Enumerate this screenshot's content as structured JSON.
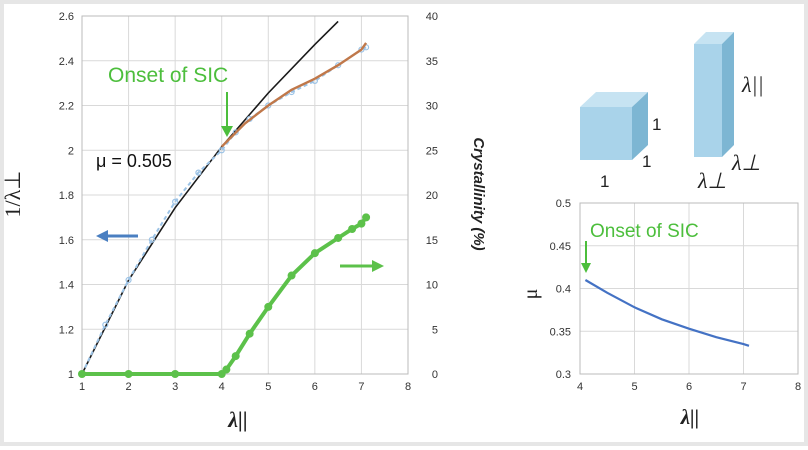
{
  "colors": {
    "measured": "#9cc3e6",
    "fit_power": "#1a1a1a",
    "fit_sic": "#c0784a",
    "crystallinity": "#5cc14a",
    "mu_curve": "#4472c4",
    "onset": "#4cbe3c",
    "cube_face": "#a9d3ea",
    "cube_side": "#6fa8c6"
  },
  "chart_data": [
    {
      "type": "line",
      "xlabel": "λ||",
      "ylabel": "1/λ⊥",
      "y2label": "Crystallinity (%)",
      "xlim": [
        1,
        8
      ],
      "ylim": [
        1,
        2.6
      ],
      "y2lim": [
        0,
        40
      ],
      "x_ticks": [
        "1",
        "2",
        "3",
        "4",
        "5",
        "6",
        "7",
        "8"
      ],
      "y_ticks": [
        "1",
        "1.2",
        "1.4",
        "1.6",
        "1.8",
        "2",
        "2.2",
        "2.4",
        "2.6"
      ],
      "y2_ticks": [
        "0",
        "5",
        "10",
        "15",
        "20",
        "25",
        "30",
        "35",
        "40"
      ],
      "grid": true,
      "annotations": {
        "onset": "Onset of SIC",
        "mu": "μ = 0.505"
      },
      "series": [
        {
          "axis": "left",
          "style": "dashed-markers",
          "x": [
            1,
            1.5,
            2,
            2.5,
            3,
            3.5,
            4,
            4.3,
            4.6,
            5,
            5.5,
            6,
            6.5,
            7,
            7.1
          ],
          "y": [
            1,
            1.22,
            1.42,
            1.6,
            1.77,
            1.9,
            2.0,
            2.08,
            2.14,
            2.2,
            2.26,
            2.31,
            2.38,
            2.45,
            2.46
          ]
        },
        {
          "axis": "left",
          "style": "line",
          "x": [
            1,
            2,
            3,
            4,
            5,
            6,
            6.5
          ],
          "y": [
            1,
            1.419,
            1.743,
            2.016,
            2.256,
            2.473,
            2.576
          ]
        },
        {
          "axis": "left",
          "style": "line",
          "x": [
            4,
            4.5,
            5,
            5.5,
            6,
            6.5,
            7,
            7.1
          ],
          "y": [
            2.016,
            2.12,
            2.2,
            2.27,
            2.32,
            2.38,
            2.45,
            2.48
          ]
        },
        {
          "axis": "right",
          "style": "markers",
          "x": [
            1,
            2,
            3,
            4,
            4.1,
            4.3,
            4.6,
            5,
            5.5,
            6,
            6.5,
            6.8,
            7,
            7.1
          ],
          "y": [
            0,
            0,
            0,
            0,
            0.5,
            2,
            4.5,
            7.5,
            11,
            13.5,
            15.2,
            16.2,
            16.8,
            17.5
          ]
        }
      ]
    },
    {
      "type": "line",
      "xlabel": "λ||",
      "ylabel": "μ",
      "xlim": [
        4,
        8
      ],
      "ylim": [
        0.3,
        0.5
      ],
      "x_ticks": [
        "4",
        "5",
        "6",
        "7",
        "8"
      ],
      "y_ticks": [
        "0.3",
        "0.35",
        "0.4",
        "0.45",
        "0.5"
      ],
      "grid": true,
      "annotations": {
        "onset": "Onset of SIC"
      },
      "series": [
        {
          "x": [
            4.1,
            4.5,
            5,
            5.5,
            6,
            6.5,
            7,
            7.1
          ],
          "y": [
            0.41,
            0.395,
            0.378,
            0.364,
            0.353,
            0.343,
            0.335,
            0.333
          ]
        }
      ]
    }
  ],
  "diagram": {
    "cube_labels": {
      "edge_depth": "1",
      "edge_height": "1",
      "edge_width": "1"
    },
    "prism_labels": {
      "height": "λ||",
      "depth": "λ⊥",
      "width": "λ⊥"
    }
  }
}
